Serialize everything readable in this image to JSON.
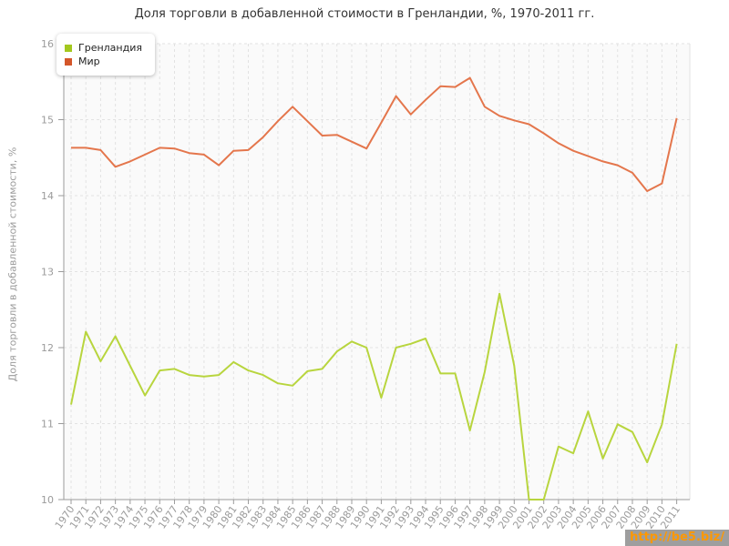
{
  "chart": {
    "title": "Доля торговли в добавленной стоимости в Гренландии, %, 1970-2011 гг.",
    "y_axis_title": "Доля торговли в добавленной стоимости, %"
  },
  "watermark": {
    "text": "http://be5.biz/",
    "bg_color": "#9e9e9e",
    "text_color": "#ff9800"
  },
  "chart_data": {
    "type": "line",
    "title": "Доля торговли в добавленной стоимости в Гренландии, %, 1970-2011 гг.",
    "xlabel": "",
    "ylabel": "Доля торговли в добавленной стоимости, %",
    "ylim": [
      10,
      16
    ],
    "y_ticks": [
      16,
      15,
      14,
      13,
      12,
      11,
      10
    ],
    "grid": "dashed",
    "legend_position": "top-left",
    "x": [
      1970,
      1971,
      1972,
      1973,
      1974,
      1975,
      1976,
      1977,
      1978,
      1979,
      1980,
      1981,
      1982,
      1983,
      1984,
      1985,
      1986,
      1987,
      1988,
      1989,
      1990,
      1991,
      1992,
      1993,
      1994,
      1995,
      1996,
      1997,
      1998,
      1999,
      2000,
      2001,
      2002,
      2003,
      2004,
      2005,
      2006,
      2007,
      2008,
      2009,
      2010,
      2011
    ],
    "series": [
      {
        "name": "Гренландия",
        "color": "#b8d53e",
        "swatch_color": "#a3c81e",
        "values": [
          11.25,
          12.21,
          11.82,
          12.15,
          11.76,
          11.37,
          11.7,
          11.72,
          11.64,
          11.62,
          11.64,
          11.81,
          11.7,
          11.64,
          11.53,
          11.5,
          11.69,
          11.72,
          11.95,
          12.08,
          12.0,
          11.34,
          12.0,
          12.05,
          12.12,
          11.66,
          11.66,
          10.91,
          11.68,
          12.71,
          11.76,
          10.0,
          10.0,
          10.7,
          10.61,
          11.16,
          10.54,
          10.99,
          10.89,
          10.49,
          10.99,
          12.05
        ]
      },
      {
        "name": "Мир",
        "color": "#e4764c",
        "swatch_color": "#d4562a",
        "values": [
          14.63,
          14.63,
          14.6,
          14.38,
          14.45,
          14.54,
          14.63,
          14.62,
          14.56,
          14.54,
          14.4,
          14.59,
          14.6,
          14.77,
          14.98,
          15.17,
          14.98,
          14.79,
          14.8,
          14.71,
          14.62,
          14.96,
          15.31,
          15.07,
          15.26,
          15.44,
          15.43,
          15.55,
          15.17,
          15.05,
          14.99,
          14.94,
          14.82,
          14.69,
          14.59,
          14.52,
          14.45,
          14.4,
          14.3,
          14.06,
          14.16,
          15.02
        ]
      }
    ]
  }
}
